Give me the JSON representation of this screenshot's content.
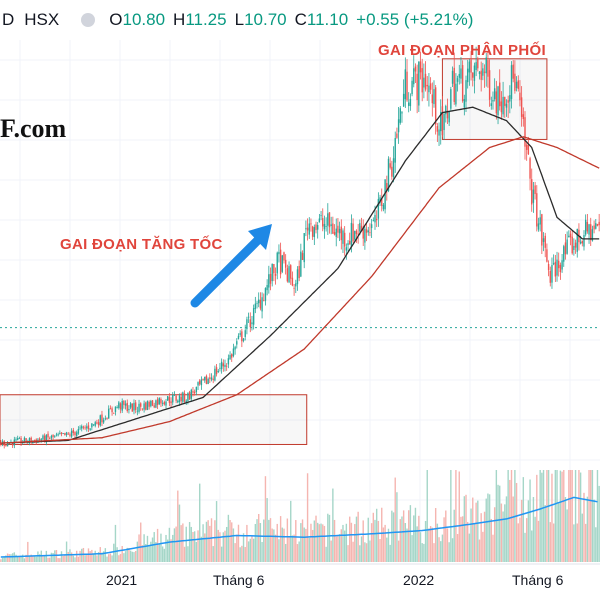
{
  "header": {
    "symbol": "D",
    "exchange": "HSX",
    "open_label": "O",
    "open": "10.80",
    "high_label": "H",
    "high": "11.25",
    "low_label": "L",
    "low": "10.70",
    "close_label": "C",
    "close": "11.10",
    "change": "+0.55 (+5.21%)"
  },
  "watermark": "F.com",
  "annotations": {
    "accel": "GAI ĐOẠN TĂNG TỐC",
    "distribution": "GAI ĐOẠN PHÂN PHỐI"
  },
  "colors": {
    "up": "#26a69a",
    "down": "#ef5350",
    "ma_short": "#2b2b2b",
    "ma_long": "#c0392b",
    "volume_ma": "#2196f3",
    "annotation": "#e0453c",
    "arrow": "#1e88e5",
    "box": "#c0392b",
    "reference_line": "#26a69a"
  },
  "chart_data": {
    "type": "candlestick",
    "x_ticks": [
      "2021",
      "Tháng 6",
      "2022",
      "Tháng 6"
    ],
    "price_series_anchors": {
      "index": [
        0,
        20,
        40,
        55,
        70,
        80,
        95,
        110,
        120,
        135,
        150,
        165,
        175,
        182,
        195,
        205,
        210,
        222,
        232,
        240,
        252,
        262,
        268,
        275,
        285,
        295,
        305,
        315,
        326,
        336,
        346,
        356
      ],
      "close": [
        3.0,
        3.1,
        3.3,
        3.7,
        4.4,
        4.3,
        4.6,
        4.7,
        5.2,
        6.1,
        7.8,
        9.8,
        8.8,
        11.2,
        11.1,
        10.6,
        10.9,
        11.1,
        13.5,
        16.3,
        16.6,
        14.5,
        16.4,
        16.4,
        17.0,
        15.8,
        16.6,
        12.4,
        9.2,
        10.2,
        10.8,
        11.1
      ]
    },
    "moving_averages": [
      {
        "index": [
          0,
          40,
          80,
          120,
          160,
          200,
          240,
          262,
          280,
          300,
          315,
          330,
          345,
          356
        ],
        "values": [
          3.0,
          3.1,
          3.9,
          4.7,
          7.0,
          9.5,
          13.5,
          15.3,
          15.5,
          15.0,
          14.0,
          11.4,
          10.6,
          10.6
        ]
      },
      {
        "index": [
          0,
          60,
          100,
          140,
          180,
          220,
          260,
          290,
          310,
          330,
          356
        ],
        "values": [
          3.0,
          3.2,
          3.8,
          4.8,
          6.5,
          9.2,
          12.5,
          14.0,
          14.4,
          14.0,
          13.2
        ]
      }
    ],
    "reference_level": 7.3,
    "volume_anchors": {
      "index": [
        0,
        60,
        100,
        140,
        180,
        220,
        250,
        280,
        300,
        320,
        340,
        356
      ],
      "values": [
        0.3,
        0.5,
        1.2,
        1.6,
        1.5,
        1.7,
        1.9,
        2.3,
        2.6,
        3.2,
        3.9,
        3.6
      ]
    },
    "bar_count": 356,
    "ylim": [
      2.0,
      18.0
    ]
  }
}
